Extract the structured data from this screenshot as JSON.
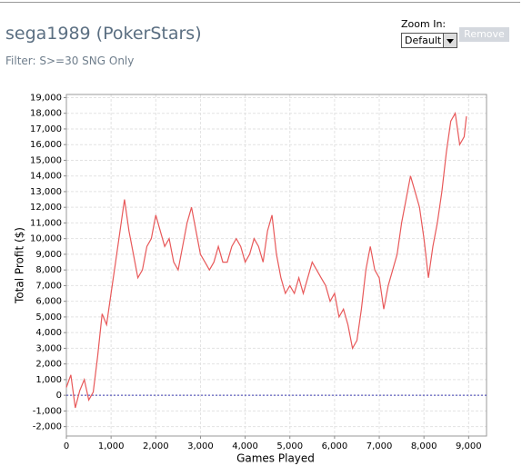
{
  "header": {
    "title": "sega1989 (PokerStars)",
    "filter": "Filter: S>=30 SNG Only",
    "zoom_label": "Zoom In:",
    "zoom_value": "Default",
    "button": "Remove"
  },
  "chart_data": {
    "type": "line",
    "xlabel": "Games Played",
    "ylabel": "Total Profit ($)",
    "color": "#e8595a",
    "grid": true,
    "x": [
      0,
      100,
      200,
      300,
      400,
      500,
      600,
      700,
      800,
      900,
      1000,
      1100,
      1200,
      1300,
      1400,
      1500,
      1600,
      1700,
      1800,
      1900,
      2000,
      2100,
      2200,
      2300,
      2400,
      2500,
      2600,
      2700,
      2800,
      2900,
      3000,
      3100,
      3200,
      3300,
      3400,
      3500,
      3600,
      3700,
      3800,
      3900,
      4000,
      4100,
      4200,
      4300,
      4400,
      4500,
      4600,
      4700,
      4800,
      4900,
      5000,
      5100,
      5200,
      5300,
      5400,
      5500,
      5600,
      5700,
      5800,
      5900,
      6000,
      6100,
      6200,
      6300,
      6400,
      6500,
      6600,
      6700,
      6800,
      6900,
      7000,
      7100,
      7200,
      7300,
      7400,
      7500,
      7600,
      7700,
      7800,
      7900,
      8000,
      8100,
      8200,
      8300,
      8400,
      8500,
      8600,
      8700,
      8800,
      8900,
      8950
    ],
    "values": [
      500,
      1300,
      -800,
      300,
      1000,
      -300,
      200,
      2500,
      5200,
      4500,
      6500,
      8500,
      10500,
      12500,
      10500,
      9000,
      7500,
      8000,
      9500,
      10000,
      11500,
      10500,
      9500,
      10000,
      8500,
      8000,
      9500,
      11000,
      12000,
      10500,
      9000,
      8500,
      8000,
      8500,
      9500,
      8500,
      8500,
      9500,
      10000,
      9500,
      8500,
      9000,
      10000,
      9500,
      8500,
      10500,
      11500,
      9000,
      7500,
      6500,
      7000,
      6500,
      7500,
      6500,
      7500,
      8500,
      8000,
      7500,
      7000,
      6000,
      6500,
      5000,
      5500,
      4500,
      3000,
      3500,
      5500,
      8000,
      9500,
      8000,
      7500,
      5500,
      7000,
      8000,
      9000,
      11000,
      12500,
      14000,
      13000,
      12000,
      10000,
      7500,
      9500,
      11000,
      13000,
      15500,
      17500,
      18000,
      16000,
      16500,
      17800
    ],
    "xlim": [
      0,
      9400
    ],
    "ylim": [
      -2600,
      19200
    ],
    "xticks": [
      0,
      {
        "value": 1000,
        "label": "1,000"
      },
      {
        "value": 2000,
        "label": "2,000"
      },
      {
        "value": 3000,
        "label": "3,000"
      },
      {
        "value": 4000,
        "label": "4,000"
      },
      {
        "value": 5000,
        "label": "5,000"
      },
      {
        "value": 6000,
        "label": "6,000"
      },
      {
        "value": 7000,
        "label": "7,000"
      },
      {
        "value": 8000,
        "label": "8,000"
      },
      {
        "value": 9000,
        "label": "9,000"
      }
    ],
    "yticks": [
      {
        "value": -2000,
        "label": "-2,000"
      },
      {
        "value": -1000,
        "label": "-1,000"
      },
      0,
      {
        "value": 1000,
        "label": "1,000"
      },
      {
        "value": 2000,
        "label": "2,000"
      },
      {
        "value": 3000,
        "label": "3,000"
      },
      {
        "value": 4000,
        "label": "4,000"
      },
      {
        "value": 5000,
        "label": "5,000"
      },
      {
        "value": 6000,
        "label": "6,000"
      },
      {
        "value": 7000,
        "label": "7,000"
      },
      {
        "value": 8000,
        "label": "8,000"
      },
      {
        "value": 9000,
        "label": "9,000"
      },
      {
        "value": 10000,
        "label": "10,000"
      },
      {
        "value": 11000,
        "label": "11,000"
      },
      {
        "value": 12000,
        "label": "12,000"
      },
      {
        "value": 13000,
        "label": "13,000"
      },
      {
        "value": 14000,
        "label": "14,000"
      },
      {
        "value": 15000,
        "label": "15,000"
      },
      {
        "value": 16000,
        "label": "16,000"
      },
      {
        "value": 17000,
        "label": "17,000"
      },
      {
        "value": 18000,
        "label": "18,000"
      },
      {
        "value": 19000,
        "label": "19,000"
      }
    ]
  }
}
